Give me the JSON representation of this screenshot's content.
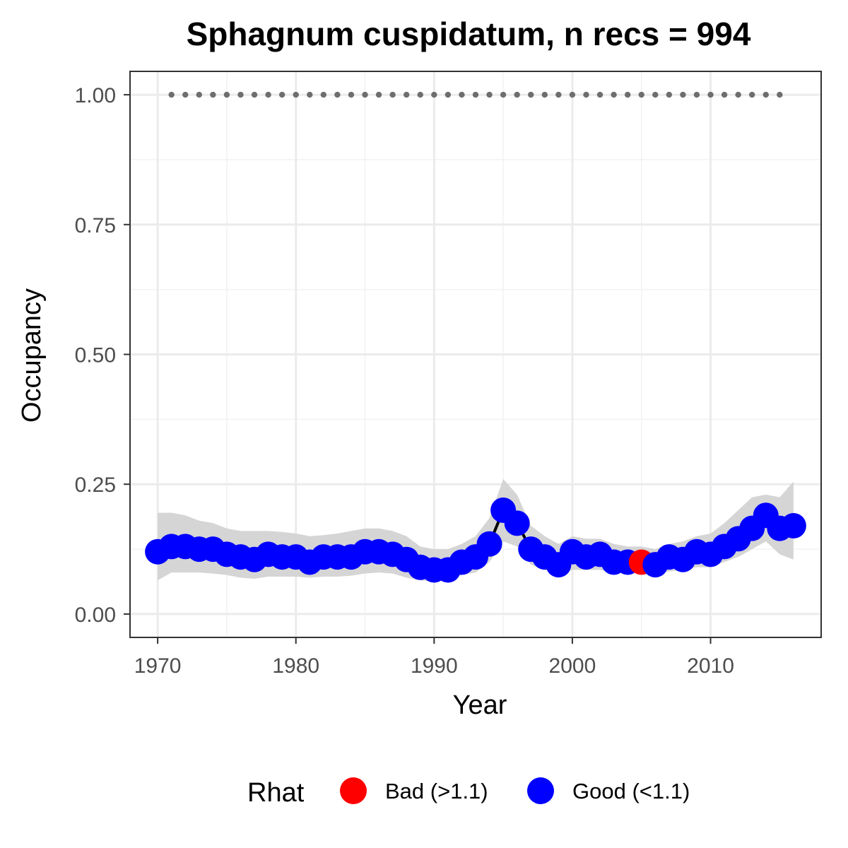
{
  "chart_data": {
    "type": "line",
    "title": "Sphagnum cuspidatum, n recs = 994",
    "xlabel": "Year",
    "ylabel": "Occupancy",
    "xlim": [
      1968,
      2018
    ],
    "ylim": [
      -0.045,
      1.045
    ],
    "x_ticks": [
      1970,
      1980,
      1990,
      2000,
      2010
    ],
    "x_tick_labels": [
      "1970",
      "1980",
      "1990",
      "2000",
      "2010"
    ],
    "y_ticks": [
      0,
      0.25,
      0.5,
      0.75,
      1.0
    ],
    "y_tick_labels": [
      "0.00",
      "0.25",
      "0.50",
      "0.75",
      "1.00"
    ],
    "grid": true,
    "legend": {
      "title": "Rhat",
      "position": "bottom",
      "entries": [
        {
          "label": "Bad (>1.1)",
          "color": "#ff0000"
        },
        {
          "label": "Good (<1.1)",
          "color": "#0000ff"
        }
      ]
    },
    "colors": {
      "bad": "#ff0000",
      "good": "#0000ff",
      "ribbon": "#d3d3d3",
      "line": "#000000",
      "reference": "#6e6e6e"
    },
    "reference_points": {
      "years": [
        1971,
        1972,
        1973,
        1974,
        1975,
        1976,
        1977,
        1978,
        1979,
        1980,
        1981,
        1982,
        1983,
        1984,
        1985,
        1986,
        1987,
        1988,
        1989,
        1990,
        1991,
        1992,
        1993,
        1994,
        1995,
        1996,
        1997,
        1998,
        1999,
        2000,
        2001,
        2002,
        2003,
        2004,
        2005,
        2006,
        2007,
        2008,
        2009,
        2010,
        2011,
        2012,
        2013,
        2014,
        2015
      ],
      "value": 1.0
    },
    "series": [
      {
        "name": "Occupancy",
        "x": [
          1970,
          1971,
          1972,
          1973,
          1974,
          1975,
          1976,
          1977,
          1978,
          1979,
          1980,
          1981,
          1982,
          1983,
          1984,
          1985,
          1986,
          1987,
          1988,
          1989,
          1990,
          1991,
          1992,
          1993,
          1994,
          1995,
          1996,
          1997,
          1998,
          1999,
          2000,
          2001,
          2002,
          2003,
          2004,
          2005,
          2006,
          2007,
          2008,
          2009,
          2010,
          2011,
          2012,
          2013,
          2014,
          2015,
          2016
        ],
        "y": [
          0.12,
          0.13,
          0.13,
          0.125,
          0.125,
          0.115,
          0.11,
          0.105,
          0.115,
          0.11,
          0.11,
          0.1,
          0.11,
          0.11,
          0.11,
          0.12,
          0.12,
          0.115,
          0.105,
          0.09,
          0.085,
          0.085,
          0.1,
          0.11,
          0.135,
          0.2,
          0.175,
          0.125,
          0.11,
          0.095,
          0.12,
          0.11,
          0.115,
          0.1,
          0.1,
          0.1,
          0.095,
          0.11,
          0.105,
          0.12,
          0.115,
          0.13,
          0.145,
          0.165,
          0.19,
          0.165,
          0.17
        ],
        "lower": [
          0.065,
          0.08,
          0.08,
          0.08,
          0.078,
          0.075,
          0.07,
          0.068,
          0.072,
          0.072,
          0.072,
          0.07,
          0.072,
          0.072,
          0.074,
          0.078,
          0.08,
          0.078,
          0.07,
          0.065,
          0.062,
          0.065,
          0.075,
          0.08,
          0.1,
          0.14,
          0.13,
          0.095,
          0.085,
          0.078,
          0.085,
          0.085,
          0.085,
          0.08,
          0.08,
          0.08,
          0.078,
          0.082,
          0.085,
          0.09,
          0.09,
          0.1,
          0.11,
          0.125,
          0.14,
          0.115,
          0.105
        ],
        "upper": [
          0.195,
          0.195,
          0.19,
          0.18,
          0.175,
          0.165,
          0.16,
          0.16,
          0.16,
          0.158,
          0.155,
          0.15,
          0.152,
          0.155,
          0.16,
          0.165,
          0.165,
          0.16,
          0.15,
          0.13,
          0.125,
          0.125,
          0.135,
          0.15,
          0.185,
          0.26,
          0.23,
          0.17,
          0.15,
          0.135,
          0.15,
          0.145,
          0.145,
          0.135,
          0.13,
          0.13,
          0.125,
          0.135,
          0.14,
          0.15,
          0.155,
          0.175,
          0.2,
          0.225,
          0.23,
          0.225,
          0.255
        ],
        "rhat_bad": [
          false,
          false,
          false,
          false,
          false,
          false,
          false,
          false,
          false,
          false,
          false,
          false,
          false,
          false,
          false,
          false,
          false,
          false,
          false,
          false,
          false,
          false,
          false,
          false,
          false,
          false,
          false,
          false,
          false,
          false,
          false,
          false,
          false,
          false,
          false,
          true,
          false,
          false,
          false,
          false,
          false,
          false,
          false,
          false,
          false,
          false,
          false
        ]
      }
    ]
  }
}
